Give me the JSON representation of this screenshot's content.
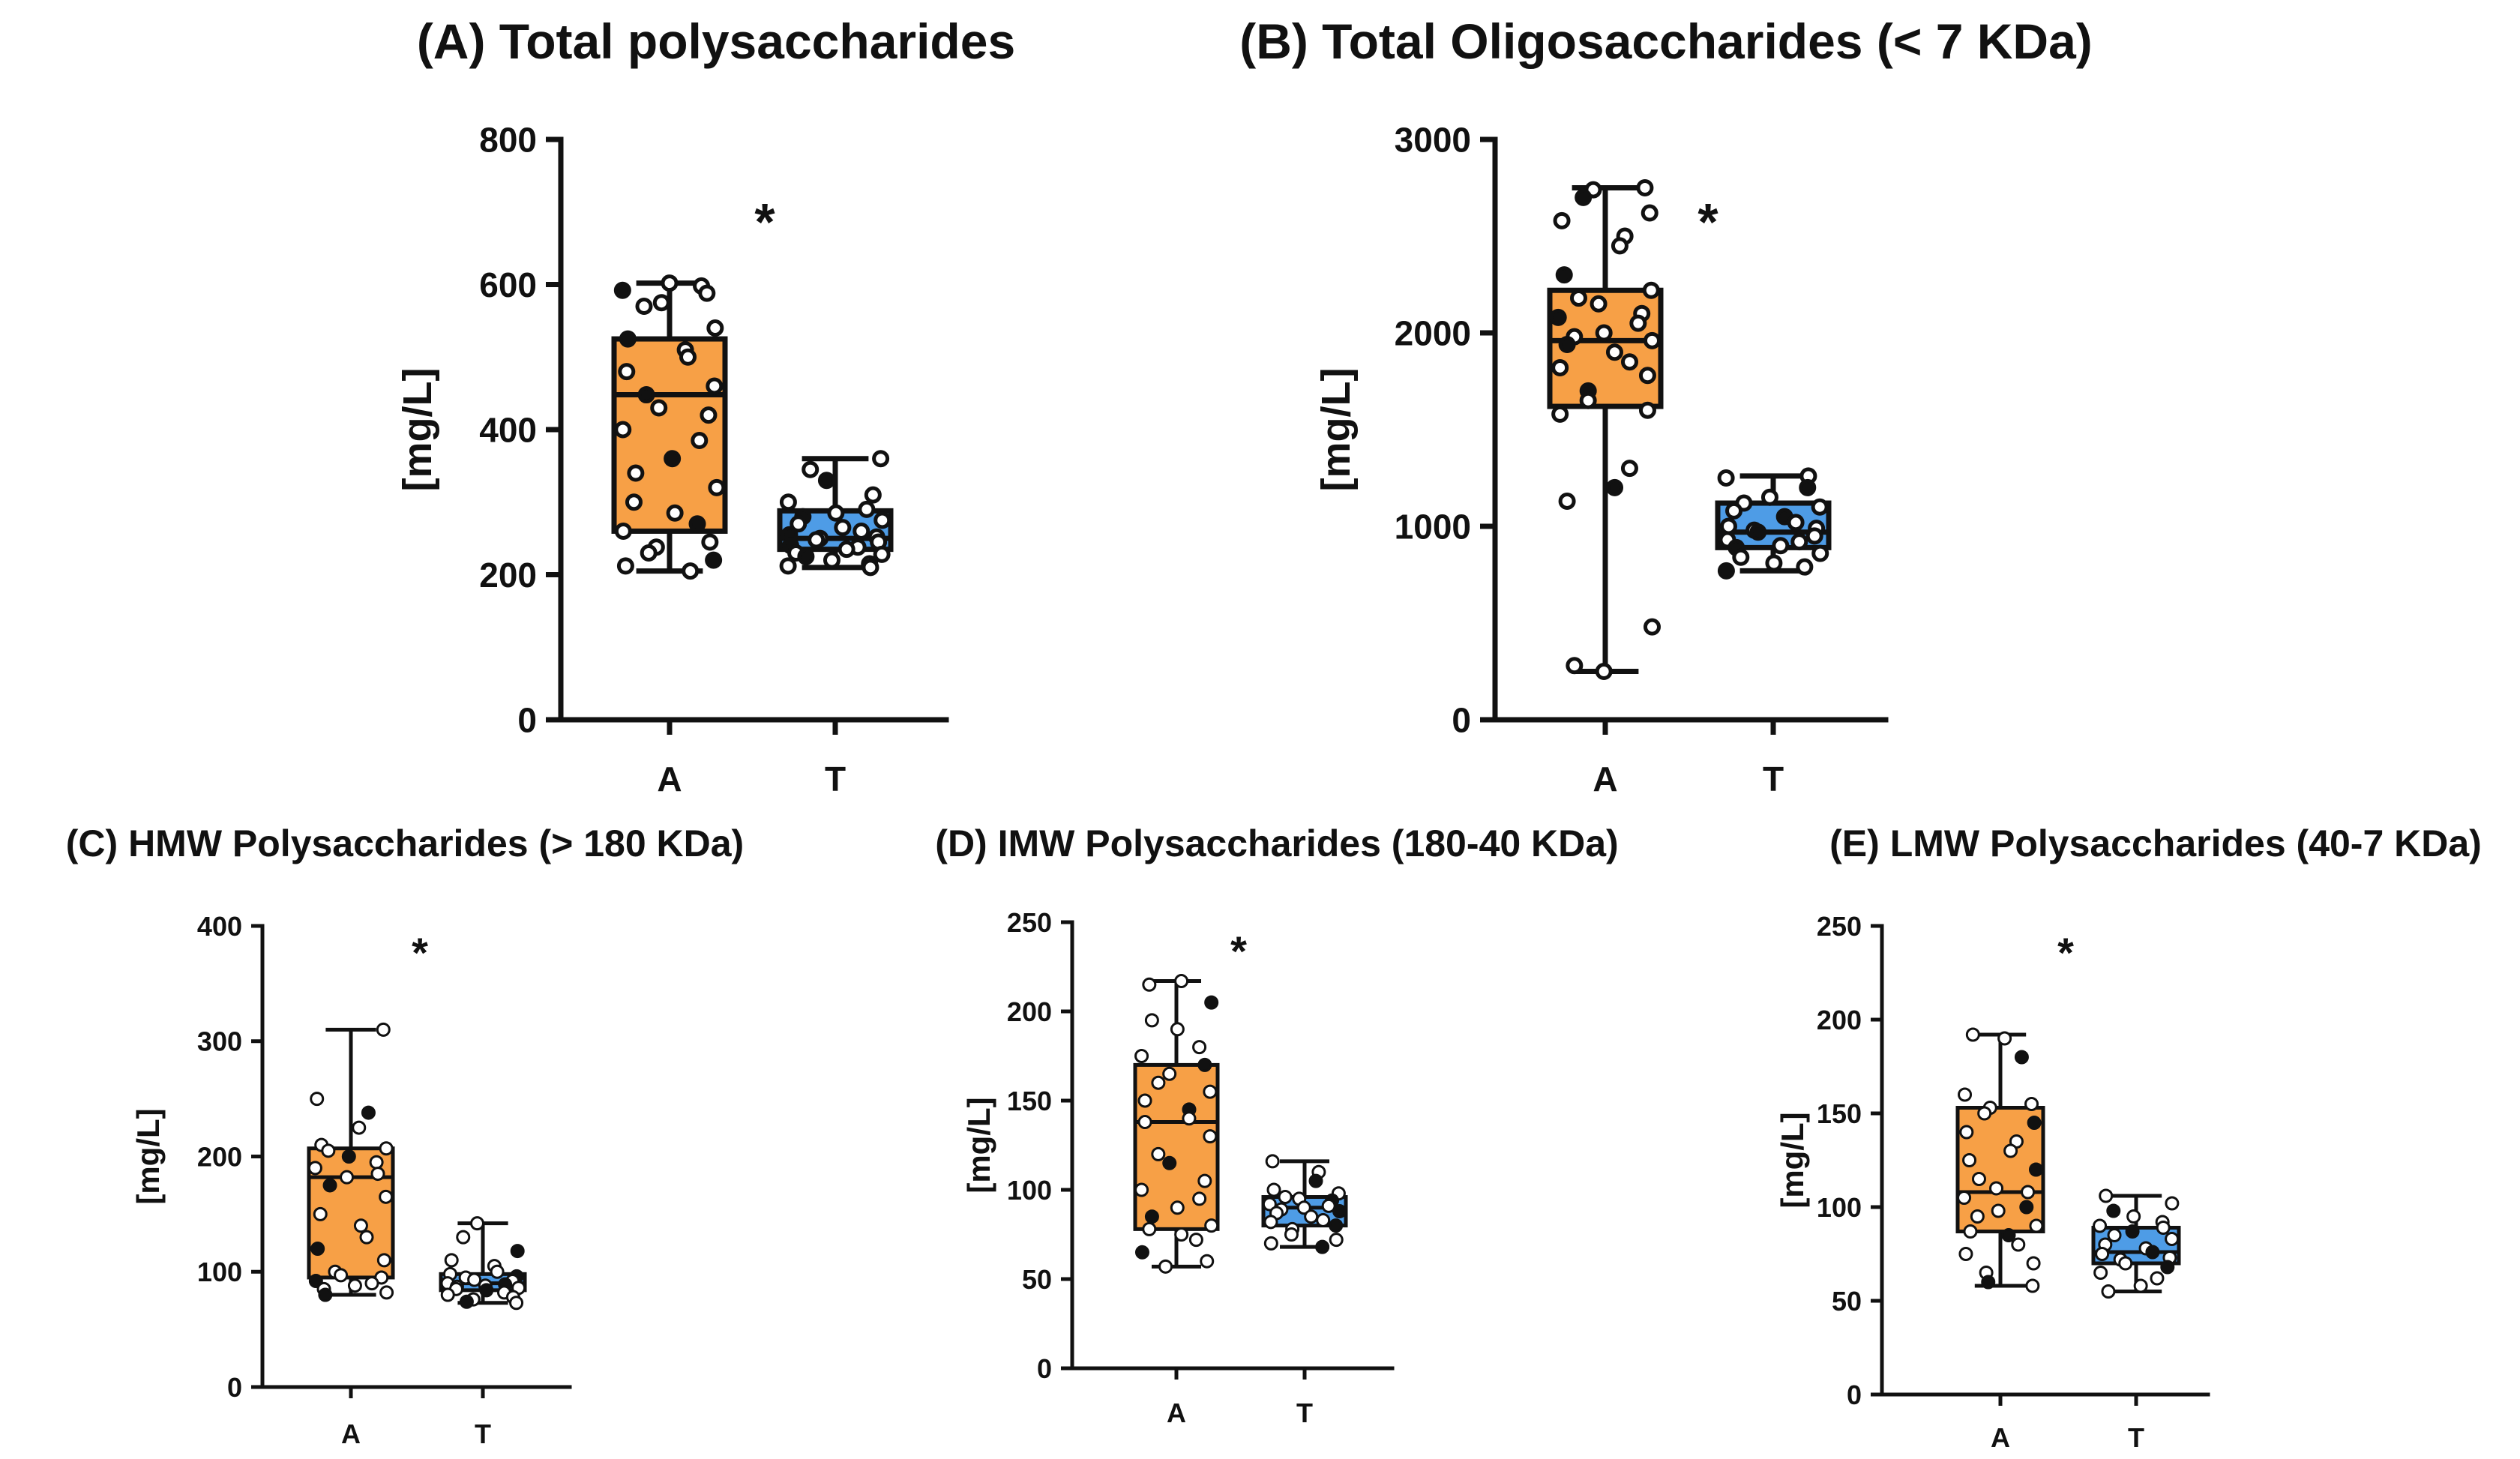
{
  "colors": {
    "groupA": "#F7A046",
    "groupT": "#4E9CE6",
    "ink": "#111111",
    "openPoint": "#ffffff"
  },
  "chart_data": [
    {
      "type": "box",
      "title": "(A) Total polysaccharides",
      "ylabel": "[mg/L]",
      "categories": [
        "A",
        "T"
      ],
      "ylim": [
        0,
        800
      ],
      "yticks": [
        0,
        200,
        400,
        600,
        800
      ],
      "annotation": "*",
      "groups": [
        {
          "name": "A",
          "min": 205,
          "q1": 260,
          "median": 448,
          "q3": 525,
          "max": 602,
          "points": [
            602,
            598,
            592,
            588,
            575,
            570,
            540,
            525,
            510,
            500,
            480,
            460,
            448,
            430,
            420,
            400,
            385,
            360,
            340,
            320,
            300,
            285,
            270,
            260,
            245,
            238,
            230,
            220,
            212,
            205
          ]
        },
        {
          "name": "T",
          "min": 210,
          "q1": 235,
          "median": 250,
          "q3": 288,
          "max": 360,
          "points": [
            360,
            345,
            330,
            310,
            300,
            290,
            285,
            280,
            275,
            270,
            265,
            260,
            255,
            252,
            250,
            248,
            245,
            240,
            238,
            235,
            230,
            228,
            225,
            220,
            215,
            212,
            210
          ]
        }
      ]
    },
    {
      "type": "box",
      "title": "(B) Total Oligosaccharides (< 7 KDa)",
      "ylabel": "[mg/L]",
      "categories": [
        "A",
        "T"
      ],
      "ylim": [
        0,
        3000
      ],
      "yticks": [
        0,
        1000,
        2000,
        3000
      ],
      "annotation": "*",
      "groups": [
        {
          "name": "A",
          "min": 250,
          "q1": 1620,
          "median": 1960,
          "q3": 2220,
          "max": 2750,
          "points": [
            2750,
            2740,
            2700,
            2620,
            2580,
            2500,
            2450,
            2300,
            2220,
            2180,
            2150,
            2100,
            2080,
            2050,
            2000,
            1980,
            1960,
            1940,
            1900,
            1850,
            1820,
            1780,
            1700,
            1650,
            1600,
            1580,
            1300,
            1200,
            1130,
            480,
            280,
            250
          ]
        },
        {
          "name": "T",
          "min": 770,
          "q1": 890,
          "median": 970,
          "q3": 1120,
          "max": 1260,
          "points": [
            1260,
            1250,
            1200,
            1150,
            1120,
            1100,
            1080,
            1050,
            1020,
            1000,
            990,
            980,
            970,
            950,
            930,
            920,
            900,
            890,
            860,
            840,
            810,
            790,
            770
          ]
        }
      ]
    },
    {
      "type": "box",
      "title": "(C) HMW Polysaccharides (> 180 KDa)",
      "ylabel": "[mg/L]",
      "categories": [
        "A",
        "T"
      ],
      "ylim": [
        0,
        400
      ],
      "yticks": [
        0,
        100,
        200,
        300,
        400
      ],
      "annotation": "*",
      "groups": [
        {
          "name": "A",
          "min": 80,
          "q1": 95,
          "median": 182,
          "q3": 207,
          "max": 310,
          "points": [
            310,
            250,
            238,
            225,
            210,
            207,
            205,
            200,
            195,
            190,
            185,
            182,
            175,
            165,
            150,
            140,
            130,
            120,
            110,
            100,
            97,
            95,
            92,
            90,
            88,
            85,
            82,
            80
          ]
        },
        {
          "name": "T",
          "min": 73,
          "q1": 84,
          "median": 90,
          "q3": 98,
          "max": 142,
          "points": [
            142,
            130,
            118,
            110,
            105,
            100,
            98,
            96,
            95,
            93,
            92,
            90,
            89,
            88,
            87,
            86,
            85,
            84,
            82,
            80,
            78,
            76,
            74,
            73
          ]
        }
      ]
    },
    {
      "type": "box",
      "title": "(D) IMW Polysaccharides (180-40 KDa)",
      "ylabel": "[mg/L]",
      "categories": [
        "A",
        "T"
      ],
      "ylim": [
        0,
        250
      ],
      "yticks": [
        0,
        50,
        100,
        150,
        200,
        250
      ],
      "annotation": "*",
      "groups": [
        {
          "name": "A",
          "min": 57,
          "q1": 78,
          "median": 138,
          "q3": 170,
          "max": 217,
          "points": [
            217,
            215,
            205,
            195,
            190,
            180,
            175,
            170,
            165,
            160,
            155,
            150,
            145,
            140,
            138,
            130,
            120,
            115,
            105,
            100,
            95,
            90,
            85,
            80,
            78,
            75,
            72,
            65,
            60,
            57
          ]
        },
        {
          "name": "T",
          "min": 68,
          "q1": 80,
          "median": 90,
          "q3": 96,
          "max": 116,
          "points": [
            116,
            110,
            105,
            100,
            98,
            96,
            95,
            94,
            92,
            91,
            90,
            89,
            88,
            87,
            85,
            83,
            82,
            80,
            78,
            75,
            72,
            70,
            68
          ]
        }
      ]
    },
    {
      "type": "box",
      "title": "(E) LMW Polysaccharides (40-7 KDa)",
      "ylabel": "[mg/L]",
      "categories": [
        "A",
        "T"
      ],
      "ylim": [
        0,
        250
      ],
      "yticks": [
        0,
        50,
        100,
        150,
        200,
        250
      ],
      "annotation": "*",
      "groups": [
        {
          "name": "A",
          "min": 58,
          "q1": 87,
          "median": 108,
          "q3": 153,
          "max": 192,
          "points": [
            192,
            190,
            180,
            160,
            155,
            153,
            150,
            145,
            140,
            135,
            130,
            125,
            120,
            115,
            110,
            108,
            105,
            100,
            98,
            95,
            90,
            87,
            85,
            80,
            75,
            70,
            65,
            60,
            58
          ]
        },
        {
          "name": "T",
          "min": 55,
          "q1": 70,
          "median": 76,
          "q3": 89,
          "max": 106,
          "points": [
            106,
            102,
            98,
            95,
            92,
            90,
            89,
            87,
            85,
            83,
            80,
            78,
            76,
            75,
            73,
            72,
            70,
            68,
            65,
            62,
            58,
            55
          ]
        }
      ]
    }
  ]
}
